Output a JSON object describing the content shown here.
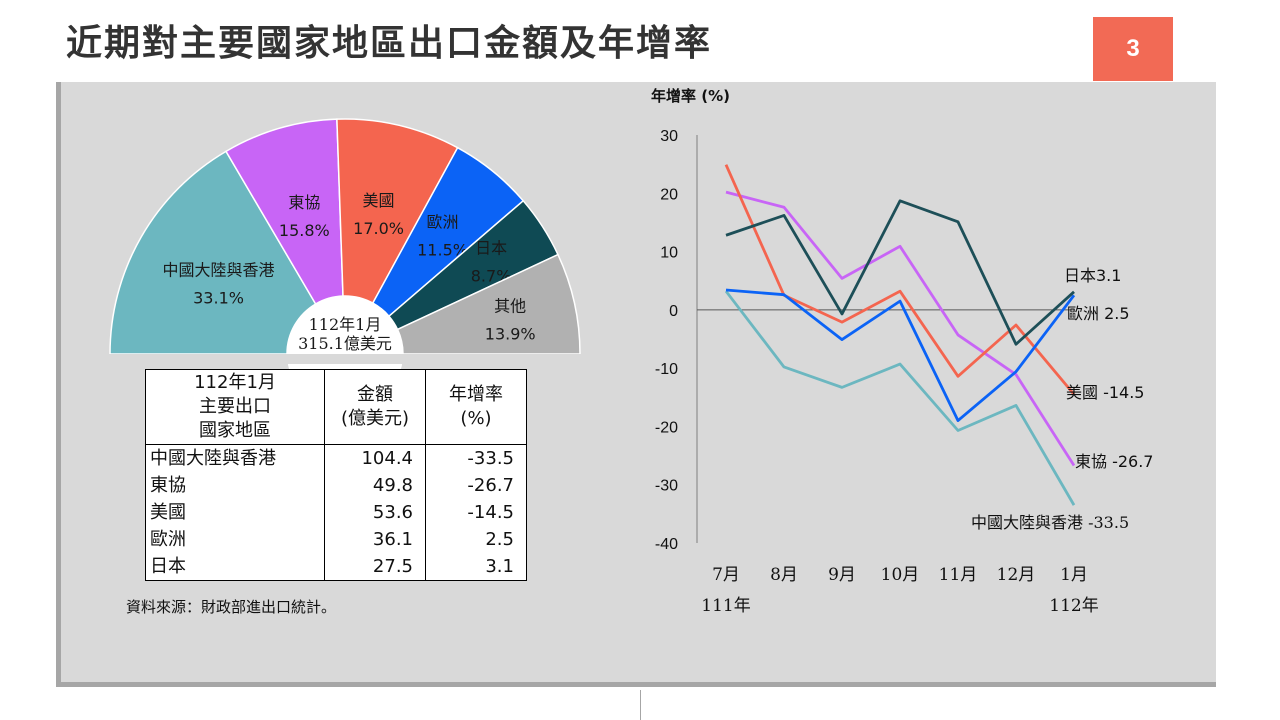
{
  "page": {
    "title": "近期對主要國家地區出口金額及年增率",
    "page_number": "3"
  },
  "pie": {
    "center_label_line1": "112年1月",
    "center_label_line2": "315.1億美元",
    "slices": [
      {
        "name": "中國大陸與香港",
        "pct_label": "33.1%",
        "value": 33.1,
        "color": "#6cb7c0"
      },
      {
        "name": "東協",
        "pct_label": "15.8%",
        "value": 15.8,
        "color": "#c865f6"
      },
      {
        "name": "美國",
        "pct_label": "17.0%",
        "value": 17.0,
        "color": "#f4654f"
      },
      {
        "name": "歐洲",
        "pct_label": "11.5%",
        "value": 11.5,
        "color": "#0b63f6"
      },
      {
        "name": "日本",
        "pct_label": "8.7%",
        "value": 8.7,
        "color": "#0f4a54"
      },
      {
        "name": "其他",
        "pct_label": "13.9%",
        "value": 13.9,
        "color": "#b1b1b1"
      }
    ]
  },
  "table": {
    "header_col1": "112年1月\n主要出口\n國家地區",
    "header_col2": "金額\n(億美元)",
    "header_col3": "年增率\n(%)",
    "rows": [
      {
        "name": "中國大陸與香港",
        "amount": "104.4",
        "growth": "-33.5"
      },
      {
        "name": "東協",
        "amount": "49.8",
        "growth": "-26.7"
      },
      {
        "name": "美國",
        "amount": "53.6",
        "growth": "-14.5"
      },
      {
        "name": "歐洲",
        "amount": "36.1",
        "growth": "2.5"
      },
      {
        "name": "日本",
        "amount": "27.5",
        "growth": "3.1"
      }
    ],
    "source": "資料來源：財政部進出口統計。"
  },
  "chart_data": {
    "type": "line",
    "ylabel": "年增率 (%)",
    "ylim": [
      -40,
      30
    ],
    "yticks": [
      30,
      20,
      10,
      0,
      -10,
      -20,
      -30,
      -40
    ],
    "categories": [
      "7月",
      "8月",
      "9月",
      "10月",
      "11月",
      "12月",
      "1月"
    ],
    "year_labels": [
      {
        "label": "111年",
        "at": "7月"
      },
      {
        "label": "112年",
        "at": "1月"
      }
    ],
    "series": [
      {
        "name": "中國大陸與香港",
        "end_label": "中國大陸與香港 -33.5",
        "color": "#6cb7c0",
        "values": [
          3.2,
          -9.8,
          -13.3,
          -9.3,
          -20.7,
          -16.4,
          -33.5
        ]
      },
      {
        "name": "東協",
        "end_label": "東協 -26.7",
        "color": "#c865f6",
        "values": [
          20.2,
          17.6,
          5.4,
          10.9,
          -4.3,
          -11.1,
          -26.7
        ]
      },
      {
        "name": "美國",
        "end_label": "美國 -14.5",
        "color": "#f4654f",
        "values": [
          24.9,
          2.5,
          -2.1,
          3.2,
          -11.4,
          -2.6,
          -14.5
        ]
      },
      {
        "name": "歐洲",
        "end_label": "歐洲 2.5",
        "color": "#0b63f6",
        "values": [
          3.4,
          2.6,
          -5.1,
          1.5,
          -19.0,
          -10.6,
          2.5
        ]
      },
      {
        "name": "日本",
        "end_label": "日本3.1",
        "color": "#1d4f58",
        "values": [
          12.8,
          16.2,
          -0.7,
          18.7,
          15.1,
          -5.9,
          3.1
        ]
      }
    ]
  }
}
